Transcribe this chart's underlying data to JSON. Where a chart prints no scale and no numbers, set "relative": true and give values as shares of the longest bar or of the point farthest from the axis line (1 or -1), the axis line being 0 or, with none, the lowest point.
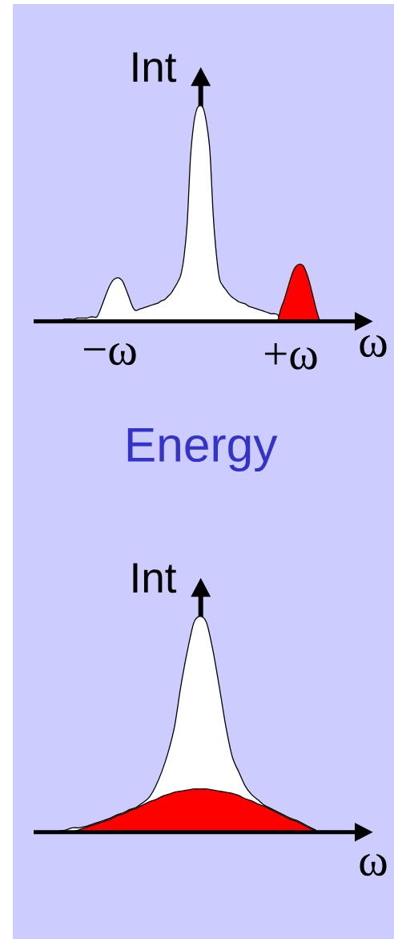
{
  "chart_data": [
    {
      "type": "area",
      "relative": true,
      "ylabel": "Int",
      "xlabel": "ω",
      "categories": [
        null,
        null,
        null,
        null,
        null,
        null,
        null,
        null,
        null,
        null,
        null,
        null,
        null,
        null,
        null,
        null,
        null,
        null,
        null,
        null,
        "−ω",
        null,
        null,
        null,
        null,
        null,
        null,
        null,
        null,
        null,
        null,
        null,
        null,
        null,
        null,
        null,
        null,
        null,
        null,
        null,
        null,
        null,
        null,
        null,
        null,
        null,
        null,
        null,
        null,
        null,
        null,
        null,
        null,
        null,
        null,
        null,
        null,
        null,
        null,
        null,
        null,
        null,
        null,
        null,
        null,
        null,
        null,
        null,
        null,
        null,
        null,
        null,
        null,
        null,
        null,
        null,
        "+ω",
        null,
        null,
        null,
        null,
        null,
        null,
        null,
        null,
        null
      ],
      "series": [
        {
          "color": "#ffffff",
          "values": [
            0,
            0,
            0,
            0,
            0.005,
            0.005,
            0.01,
            0.01,
            0.01,
            0.01,
            0.015,
            0.015,
            0.015,
            0.015,
            0.02,
            0.02,
            0.02,
            0.05,
            0.09,
            0.13,
            0.165,
            0.19,
            0.2,
            0.2,
            0.185,
            0.15,
            0.11,
            0.07,
            0.05,
            0.055,
            0.06,
            0.065,
            0.07,
            0.075,
            0.08,
            0.085,
            0.095,
            0.1,
            0.115,
            0.13,
            0.155,
            0.18,
            0.215,
            0.3,
            0.46,
            0.76,
            0.915,
            0.985,
            1,
            0.985,
            0.915,
            0.79,
            0.5,
            0.31,
            0.195,
            0.165,
            0.145,
            0.125,
            0.11,
            0.1,
            0.09,
            0.085,
            0.08,
            0.07,
            0.065,
            0.06,
            0.055,
            0.05,
            0.045,
            0.04,
            0.035,
            0.035,
            0.03,
            0,
            null,
            null,
            null,
            null,
            null,
            null,
            null,
            null,
            null,
            null,
            null,
            null
          ]
        },
        {
          "color": "#ff0000",
          "values": [
            null,
            null,
            null,
            null,
            null,
            null,
            null,
            null,
            null,
            null,
            null,
            null,
            null,
            null,
            null,
            null,
            null,
            null,
            null,
            null,
            null,
            null,
            null,
            null,
            null,
            null,
            null,
            null,
            null,
            null,
            null,
            null,
            null,
            null,
            null,
            null,
            null,
            null,
            null,
            null,
            null,
            null,
            null,
            null,
            null,
            null,
            null,
            null,
            null,
            null,
            null,
            null,
            null,
            null,
            null,
            null,
            null,
            null,
            null,
            null,
            null,
            null,
            null,
            null,
            null,
            null,
            null,
            null,
            null,
            null,
            null,
            null,
            0,
            0.06,
            0.1,
            0.15,
            0.2,
            0.24,
            0.26,
            0.265,
            0.255,
            0.22,
            0.17,
            0.11,
            0.05,
            0
          ]
        }
      ]
    },
    {
      "type": "area",
      "relative": true,
      "title": "Energy",
      "ylabel": "Int",
      "xlabel": "ω",
      "categories": [
        null,
        null,
        null,
        null,
        null,
        null,
        null,
        null,
        null,
        null,
        null,
        null,
        null,
        null,
        null,
        null,
        null,
        null,
        null,
        null,
        null,
        null,
        null,
        null,
        null,
        null,
        null,
        null,
        null,
        null,
        null,
        null,
        null,
        null,
        null,
        null,
        null,
        null,
        null,
        null,
        null,
        null
      ],
      "series": [
        {
          "color": "#ffffff",
          "values": [
            0,
            0.005,
            0.01,
            0.02,
            0.02,
            0.025,
            0.035,
            0.045,
            0.055,
            0.065,
            0.08,
            0.09,
            0.105,
            0.115,
            0.135,
            0.16,
            0.21,
            0.28,
            0.37,
            0.49,
            0.68,
            0.84,
            0.97,
            1,
            0.97,
            0.84,
            0.67,
            0.49,
            0.35,
            0.28,
            0.215,
            0.175,
            0.15,
            0.125,
            0.11,
            0.095,
            0.08,
            0.065,
            0.055,
            0.04,
            0.025,
            0.01
          ]
        },
        {
          "color": "#ff0000",
          "values": [
            null,
            null,
            null,
            0,
            0.01,
            0.02,
            0.03,
            0.04,
            0.05,
            0.06,
            0.075,
            0.085,
            0.1,
            0.11,
            0.125,
            0.14,
            0.15,
            0.165,
            0.175,
            0.185,
            0.19,
            0.195,
            0.2,
            0.2,
            0.2,
            0.195,
            0.19,
            0.185,
            0.18,
            0.17,
            0.155,
            0.145,
            0.13,
            0.12,
            0.105,
            0.09,
            0.075,
            0.06,
            0.05,
            0.035,
            0.02,
            0.01
          ]
        }
      ]
    }
  ]
}
